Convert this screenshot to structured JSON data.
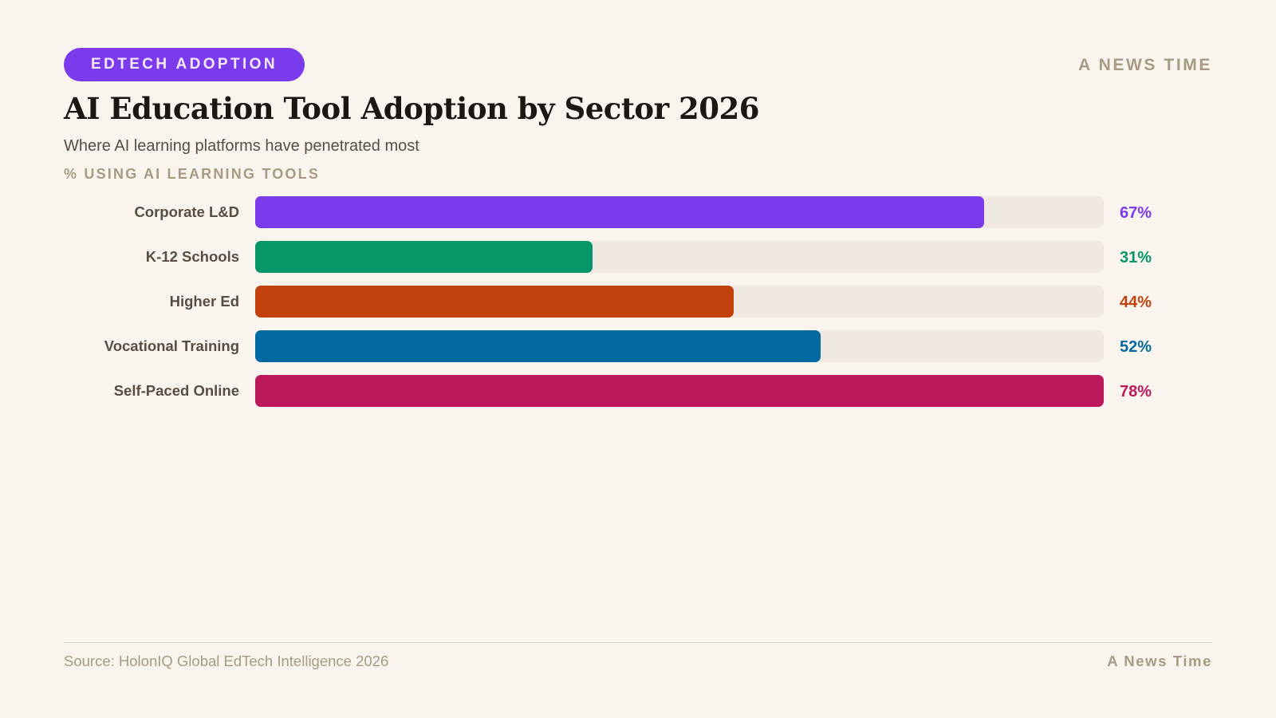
{
  "header": {
    "badge": "EDTECH ADOPTION",
    "brand": "A NEWS TIME",
    "title": "AI Education Tool Adoption by Sector 2026",
    "subtitle": "Where AI learning platforms have penetrated most"
  },
  "chart_data": {
    "type": "bar",
    "orientation": "horizontal",
    "title": "AI Education Tool Adoption by Sector 2026",
    "subtitle": "Where AI learning platforms have penetrated most",
    "xlabel": "% USING AI LEARNING TOOLS",
    "categories": [
      "Corporate L&D",
      "K-12 Schools",
      "Higher Ed",
      "Vocational Training",
      "Self-Paced Online"
    ],
    "values": [
      67,
      31,
      44,
      52,
      78
    ],
    "value_labels": [
      "67%",
      "31%",
      "44%",
      "52%",
      "78%"
    ],
    "colors": [
      "#7c3aed",
      "#059669",
      "#c2410c",
      "#0369a1",
      "#be185d"
    ],
    "xlim": [
      0,
      78
    ],
    "track_color": "#efe9e2",
    "grid": false
  },
  "footer": {
    "source": "Source: HolonIQ Global EdTech Intelligence 2026",
    "brand": "A News Time"
  }
}
